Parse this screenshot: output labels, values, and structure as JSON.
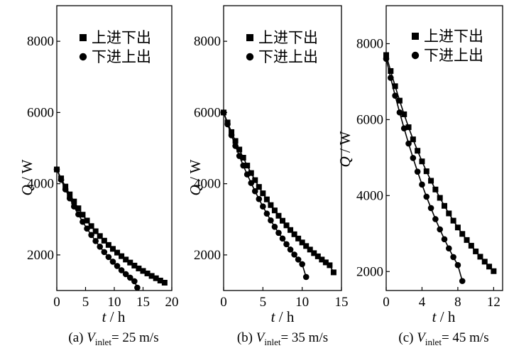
{
  "figure": {
    "panels": [
      {
        "caption": {
          "prefix": "(a)",
          "var": "V",
          "sub": "inlet",
          "value": "= 25 m/s"
        },
        "ylabel": {
          "q": "Q",
          "sep": " / W"
        },
        "xlabel": {
          "t": "t",
          "sep": " / h"
        }
      },
      {
        "caption": {
          "prefix": "(b)",
          "var": "V",
          "sub": "inlet",
          "value": "= 35 m/s"
        },
        "ylabel": {
          "q": "Q",
          "sep": " / W"
        },
        "xlabel": {
          "t": "t",
          "sep": " / h"
        }
      },
      {
        "caption": {
          "prefix": "(c)",
          "var": "V",
          "sub": "inlet",
          "value": "= 45 m/s"
        },
        "ylabel": {
          "q": "Q",
          "sep": " / W"
        },
        "xlabel": {
          "t": "t",
          "sep": " / h"
        }
      }
    ]
  },
  "colors": {
    "line": "#000000",
    "marker": "#000000",
    "frame": "#000000"
  },
  "chart_data": [
    {
      "type": "line",
      "title": "(a) V_inlet = 25 m/s",
      "xlabel": "t / h",
      "ylabel": "Q / W",
      "xlim": [
        0,
        20
      ],
      "ylim": [
        1000,
        9000
      ],
      "xticks": [
        0,
        5,
        10,
        15,
        20
      ],
      "yticks": [
        2000,
        4000,
        6000,
        8000
      ],
      "legend_position": "top-right",
      "series": [
        {
          "name": "上进下出",
          "marker": "square",
          "x": [
            0,
            0.75,
            1.5,
            2.25,
            3,
            3.75,
            4.5,
            5.25,
            6,
            6.75,
            7.5,
            8.25,
            9,
            9.75,
            10.5,
            11.25,
            12,
            12.75,
            13.5,
            14.25,
            15,
            15.75,
            16.5,
            17.25,
            18,
            18.75
          ],
          "y": [
            4400,
            4150,
            3920,
            3700,
            3500,
            3310,
            3130,
            2965,
            2810,
            2665,
            2530,
            2400,
            2280,
            2170,
            2065,
            1965,
            1870,
            1785,
            1700,
            1620,
            1550,
            1480,
            1410,
            1345,
            1280,
            1220
          ]
        },
        {
          "name": "下进上出",
          "marker": "circle",
          "x": [
            0,
            0.75,
            1.5,
            2.25,
            3,
            3.75,
            4.5,
            5.25,
            6,
            6.75,
            7.5,
            8.25,
            9,
            9.75,
            10.5,
            11.25,
            12,
            12.75,
            13.5,
            14
          ],
          "y": [
            4400,
            4110,
            3840,
            3590,
            3360,
            3140,
            2930,
            2740,
            2560,
            2390,
            2230,
            2080,
            1940,
            1810,
            1690,
            1570,
            1460,
            1360,
            1260,
            1080
          ]
        }
      ]
    },
    {
      "type": "line",
      "title": "(b) V_inlet = 35 m/s",
      "xlabel": "t / h",
      "ylabel": "Q / W",
      "xlim": [
        0,
        15
      ],
      "ylim": [
        1000,
        9000
      ],
      "xticks": [
        0,
        5,
        10,
        15
      ],
      "yticks": [
        2000,
        4000,
        6000,
        8000
      ],
      "legend_position": "top-right",
      "series": [
        {
          "name": "上进下出",
          "marker": "square",
          "x": [
            0,
            0.5,
            1,
            1.5,
            2,
            2.5,
            3,
            3.5,
            4,
            4.5,
            5,
            5.5,
            6,
            6.5,
            7,
            7.5,
            8,
            8.5,
            9,
            9.5,
            10,
            10.5,
            11,
            11.5,
            12,
            12.5,
            13,
            13.5,
            14
          ],
          "y": [
            6000,
            5720,
            5450,
            5200,
            4960,
            4730,
            4510,
            4300,
            4100,
            3910,
            3730,
            3560,
            3400,
            3250,
            3100,
            2960,
            2830,
            2700,
            2580,
            2460,
            2350,
            2250,
            2150,
            2050,
            1960,
            1870,
            1790,
            1710,
            1510
          ]
        },
        {
          "name": "下进上出",
          "marker": "circle",
          "x": [
            0,
            0.5,
            1,
            1.5,
            2,
            2.5,
            3,
            3.5,
            4,
            4.5,
            5,
            5.5,
            6,
            6.5,
            7,
            7.5,
            8,
            8.5,
            9,
            9.5,
            10,
            10.5
          ],
          "y": [
            6000,
            5670,
            5360,
            5060,
            4780,
            4510,
            4260,
            4020,
            3790,
            3570,
            3360,
            3160,
            2970,
            2790,
            2620,
            2460,
            2300,
            2150,
            2010,
            1870,
            1740,
            1380
          ]
        }
      ]
    },
    {
      "type": "line",
      "title": "(c) V_inlet = 45 m/s",
      "xlabel": "t / h",
      "ylabel": "Q / W",
      "xlim": [
        0,
        13
      ],
      "ylim": [
        1500,
        9000
      ],
      "xticks": [
        0,
        4,
        8,
        12
      ],
      "yticks": [
        2000,
        4000,
        6000,
        8000
      ],
      "legend_position": "top-right",
      "series": [
        {
          "name": "上进下出",
          "marker": "square",
          "x": [
            0,
            0.5,
            1,
            1.5,
            2,
            2.5,
            3,
            3.5,
            4,
            4.5,
            5,
            5.5,
            6,
            6.5,
            7,
            7.5,
            8,
            8.5,
            9,
            9.5,
            10,
            10.5,
            11,
            11.5,
            12
          ],
          "y": [
            7700,
            7280,
            6880,
            6500,
            6140,
            5800,
            5480,
            5180,
            4900,
            4640,
            4390,
            4160,
            3940,
            3730,
            3530,
            3340,
            3160,
            2990,
            2830,
            2680,
            2530,
            2390,
            2260,
            2130,
            2010
          ]
        },
        {
          "name": "下进上出",
          "marker": "circle",
          "x": [
            0,
            0.5,
            1,
            1.5,
            2,
            2.5,
            3,
            3.5,
            4,
            4.5,
            5,
            5.5,
            6,
            6.5,
            7,
            7.5,
            8,
            8.5
          ],
          "y": [
            7600,
            7100,
            6630,
            6190,
            5770,
            5370,
            4990,
            4630,
            4290,
            3970,
            3670,
            3380,
            3110,
            2850,
            2610,
            2380,
            2170,
            1750
          ]
        }
      ]
    }
  ]
}
